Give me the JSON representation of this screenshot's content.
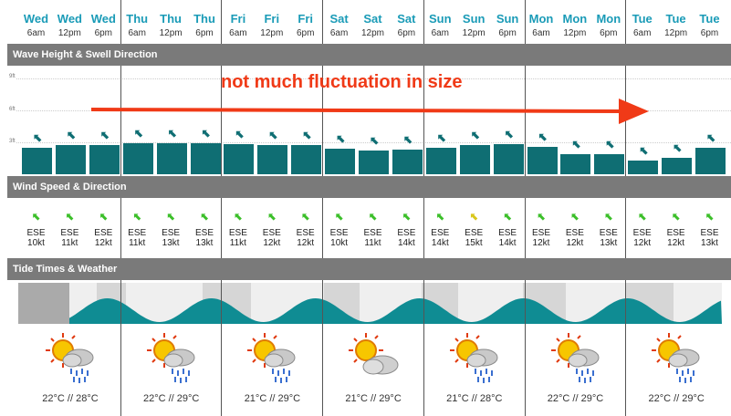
{
  "columns": [
    {
      "day": "Wed",
      "time": "6am"
    },
    {
      "day": "Wed",
      "time": "12pm"
    },
    {
      "day": "Wed",
      "time": "6pm"
    },
    {
      "day": "Thu",
      "time": "6am"
    },
    {
      "day": "Thu",
      "time": "12pm"
    },
    {
      "day": "Thu",
      "time": "6pm"
    },
    {
      "day": "Fri",
      "time": "6am"
    },
    {
      "day": "Fri",
      "time": "12pm"
    },
    {
      "day": "Fri",
      "time": "6pm"
    },
    {
      "day": "Sat",
      "time": "6am"
    },
    {
      "day": "Sat",
      "time": "12pm"
    },
    {
      "day": "Sat",
      "time": "6pm"
    },
    {
      "day": "Sun",
      "time": "6am"
    },
    {
      "day": "Sun",
      "time": "12pm"
    },
    {
      "day": "Sun",
      "time": "6pm"
    },
    {
      "day": "Mon",
      "time": "6am"
    },
    {
      "day": "Mon",
      "time": "12pm"
    },
    {
      "day": "Mon",
      "time": "6pm"
    },
    {
      "day": "Tue",
      "time": "6am"
    },
    {
      "day": "Tue",
      "time": "12pm"
    },
    {
      "day": "Tue",
      "time": "6pm"
    }
  ],
  "sections": {
    "wave": "Wave Height & Swell Direction",
    "wind": "Wind Speed & Direction",
    "tide": "Tide Times & Weather"
  },
  "wave_axis": {
    "labels": [
      "9ft",
      "6ft",
      "3ft"
    ]
  },
  "wave_heights_ft": [
    2.5,
    2.7,
    2.7,
    2.9,
    2.9,
    2.9,
    2.8,
    2.7,
    2.7,
    2.4,
    2.2,
    2.3,
    2.5,
    2.7,
    2.8,
    2.6,
    1.9,
    1.9,
    1.3,
    1.5,
    2.5
  ],
  "annotation": "not much fluctuation in size",
  "wind": [
    {
      "dir": "ESE",
      "speed": "10kt",
      "color": "#3cbf2a"
    },
    {
      "dir": "ESE",
      "speed": "11kt",
      "color": "#3cbf2a"
    },
    {
      "dir": "ESE",
      "speed": "12kt",
      "color": "#3cbf2a"
    },
    {
      "dir": "ESE",
      "speed": "11kt",
      "color": "#3cbf2a"
    },
    {
      "dir": "ESE",
      "speed": "13kt",
      "color": "#3cbf2a"
    },
    {
      "dir": "ESE",
      "speed": "13kt",
      "color": "#3cbf2a"
    },
    {
      "dir": "ESE",
      "speed": "11kt",
      "color": "#3cbf2a"
    },
    {
      "dir": "ESE",
      "speed": "12kt",
      "color": "#3cbf2a"
    },
    {
      "dir": "ESE",
      "speed": "12kt",
      "color": "#3cbf2a"
    },
    {
      "dir": "ESE",
      "speed": "10kt",
      "color": "#3cbf2a"
    },
    {
      "dir": "ESE",
      "speed": "11kt",
      "color": "#3cbf2a"
    },
    {
      "dir": "ESE",
      "speed": "14kt",
      "color": "#3cbf2a"
    },
    {
      "dir": "ESE",
      "speed": "14kt",
      "color": "#3cbf2a"
    },
    {
      "dir": "ESE",
      "speed": "15kt",
      "color": "#d9c71c"
    },
    {
      "dir": "ESE",
      "speed": "14kt",
      "color": "#3cbf2a"
    },
    {
      "dir": "ESE",
      "speed": "12kt",
      "color": "#3cbf2a"
    },
    {
      "dir": "ESE",
      "speed": "12kt",
      "color": "#3cbf2a"
    },
    {
      "dir": "ESE",
      "speed": "13kt",
      "color": "#3cbf2a"
    },
    {
      "dir": "ESE",
      "speed": "12kt",
      "color": "#3cbf2a"
    },
    {
      "dir": "ESE",
      "speed": "12kt",
      "color": "#3cbf2a"
    },
    {
      "dir": "ESE",
      "speed": "13kt",
      "color": "#3cbf2a"
    }
  ],
  "weather": [
    {
      "temp": "22°C // 28°C",
      "icon": "sun-cloud-rain-icon"
    },
    {
      "temp": "22°C // 29°C",
      "icon": "sun-cloud-rain-icon"
    },
    {
      "temp": "21°C // 29°C",
      "icon": "sun-cloud-rain-icon"
    },
    {
      "temp": "21°C // 29°C",
      "icon": "sun-cloud-icon"
    },
    {
      "temp": "21°C // 28°C",
      "icon": "sun-cloud-rain-icon"
    },
    {
      "temp": "22°C // 29°C",
      "icon": "sun-cloud-rain-icon"
    },
    {
      "temp": "22°C // 29°C",
      "icon": "sun-cloud-rain-icon"
    }
  ],
  "colors": {
    "accent": "#1a9bb7",
    "wave": "#0f6e73",
    "tide": "#0f8c93",
    "annotation": "#f03a17"
  }
}
